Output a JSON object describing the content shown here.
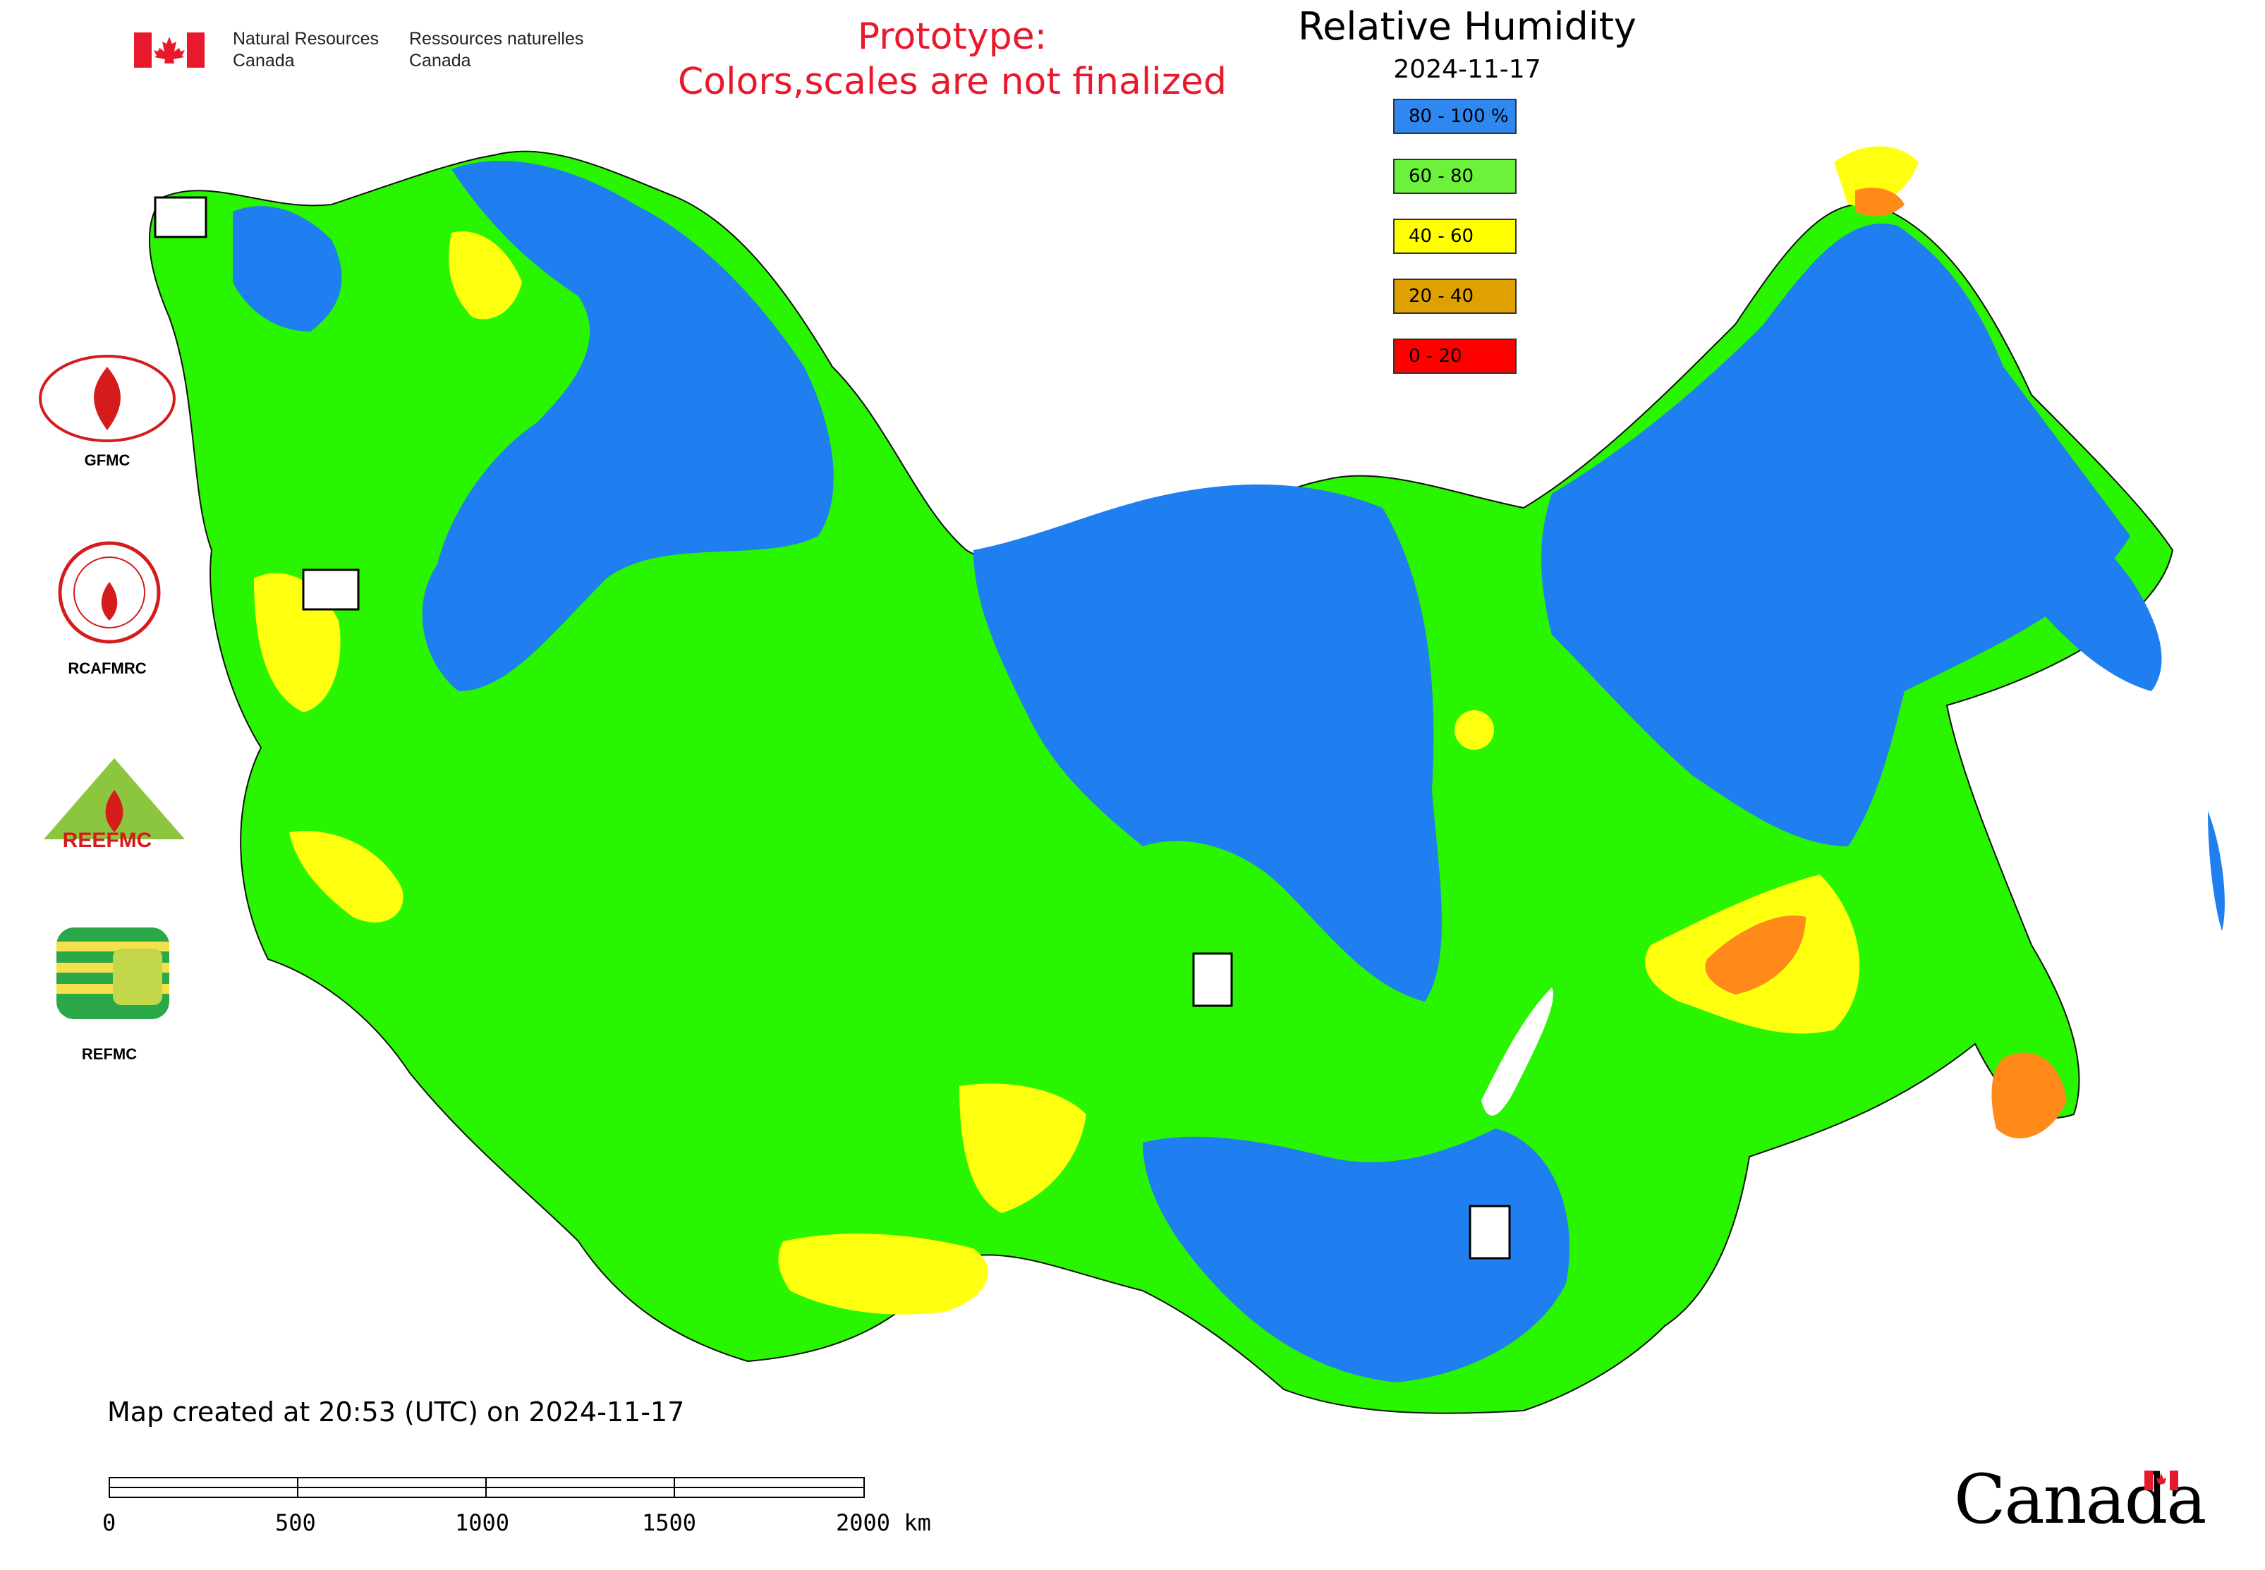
{
  "header": {
    "department_en": [
      "Natural Resources",
      "Canada"
    ],
    "department_fr": [
      "Ressources naturelles",
      "Canada"
    ],
    "prototype_line1": "Prototype:",
    "prototype_line2": "Colors,scales are not finalized"
  },
  "map": {
    "title": "Relative Humidity",
    "date": "2024-11-17",
    "legend": [
      {
        "label": "80 - 100 %",
        "color": "#2f87f0"
      },
      {
        "label": "60 - 80",
        "color": "#6cf23a"
      },
      {
        "label": "40 - 60",
        "color": "#ffff00"
      },
      {
        "label": "20 - 40",
        "color": "#e0a000"
      },
      {
        "label": "0 - 20",
        "color": "#ff0000"
      }
    ],
    "colors": {
      "blue": "#1f7ff0",
      "green": "#2af500",
      "yellow": "#ffff10",
      "orange": "#ff8a1a",
      "red": "#ff0000"
    }
  },
  "logos": [
    {
      "label": "GFMC",
      "icon": "gfmc-logo-icon"
    },
    {
      "label": "RCAFMRC",
      "icon": "rcafmrc-logo-icon"
    },
    {
      "label": "REEFMC",
      "icon": "reefmc-logo-icon"
    },
    {
      "label": "REFMC",
      "icon": "refmc-logo-icon"
    }
  ],
  "footer": {
    "created": "Map created at 20:53 (UTC) on 2024-11-17",
    "scale_ticks": [
      "0",
      "500",
      "1000",
      "1500",
      "2000 km"
    ],
    "wordmark": "Canada"
  }
}
